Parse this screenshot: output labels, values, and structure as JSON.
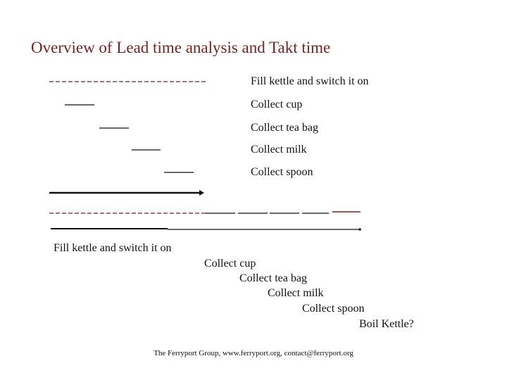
{
  "title": "Overview of Lead time analysis and Takt time",
  "sequential_tasks": [
    "Fill kettle and switch it on",
    "Collect cup",
    "Collect tea bag",
    "Collect milk",
    "Collect spoon"
  ],
  "timeline_tasks": [
    "Fill kettle and switch it on",
    "Collect cup",
    "Collect tea bag",
    "Collect milk",
    "Collect spoon",
    "Boil Kettle?"
  ],
  "footer": "The Ferryport Group, www.ferryport.org, contact@ferryport.org",
  "colors": {
    "title": "#7a1f1f",
    "dashed_line": "#7a1f1f",
    "task_line": "#111111",
    "highlight_bar": "#7a1f1f"
  }
}
